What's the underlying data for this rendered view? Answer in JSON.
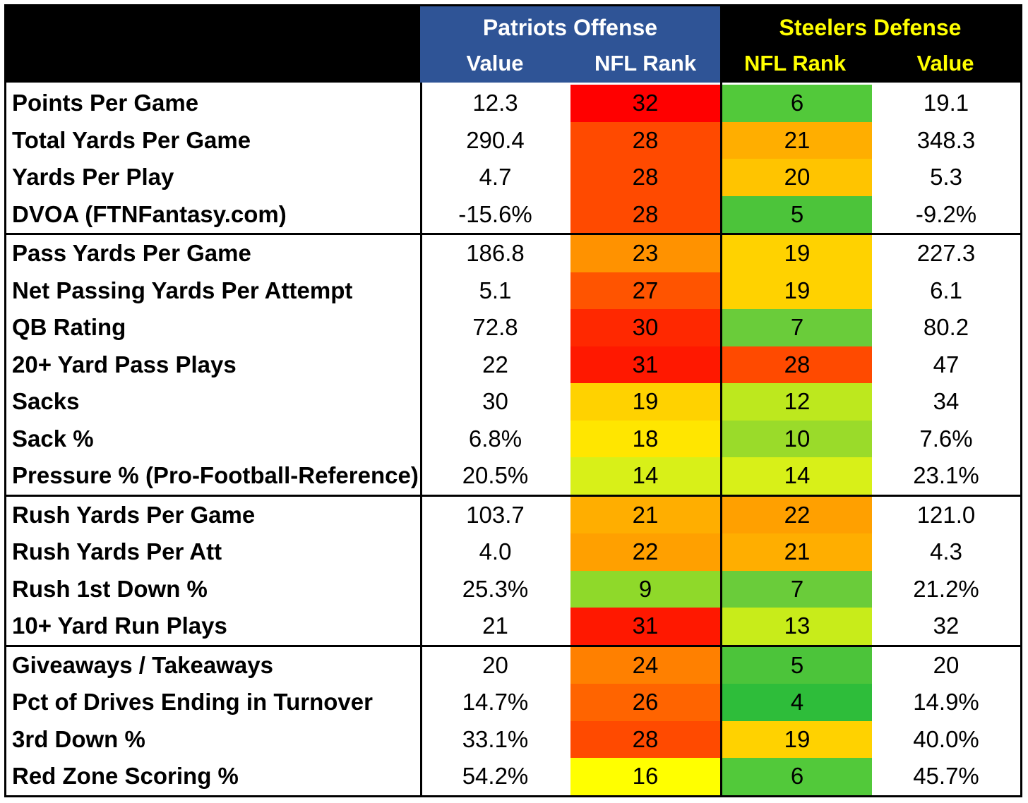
{
  "header": {
    "patriots": {
      "title": "Patriots Offense",
      "value_label": "Value",
      "rank_label": "NFL Rank",
      "color": "#2F5496"
    },
    "steelers": {
      "title": "Steelers Defense",
      "rank_label": "NFL Rank",
      "value_label": "Value",
      "color": "#000000",
      "text_color": "#FFFF00"
    }
  },
  "sections": [
    [
      {
        "label": "Points Per Game",
        "pat_value": "12.3",
        "pat_rank": "32",
        "stl_rank": "6",
        "stl_value": "19.1"
      },
      {
        "label": "Total Yards Per Game",
        "pat_value": "290.4",
        "pat_rank": "28",
        "stl_rank": "21",
        "stl_value": "348.3"
      },
      {
        "label": "Yards Per Play",
        "pat_value": "4.7",
        "pat_rank": "28",
        "stl_rank": "20",
        "stl_value": "5.3"
      },
      {
        "label": "DVOA (FTNFantasy.com)",
        "pat_value": "-15.6%",
        "pat_rank": "28",
        "stl_rank": "5",
        "stl_value": "-9.2%"
      }
    ],
    [
      {
        "label": "Pass Yards Per Game",
        "pat_value": "186.8",
        "pat_rank": "23",
        "stl_rank": "19",
        "stl_value": "227.3"
      },
      {
        "label": "Net Passing Yards Per Attempt",
        "pat_value": "5.1",
        "pat_rank": "27",
        "stl_rank": "19",
        "stl_value": "6.1"
      },
      {
        "label": "QB Rating",
        "pat_value": "72.8",
        "pat_rank": "30",
        "stl_rank": "7",
        "stl_value": "80.2"
      },
      {
        "label": "20+ Yard Pass Plays",
        "pat_value": "22",
        "pat_rank": "31",
        "stl_rank": "28",
        "stl_value": "47"
      },
      {
        "label": "Sacks",
        "pat_value": "30",
        "pat_rank": "19",
        "stl_rank": "12",
        "stl_value": "34"
      },
      {
        "label": "Sack %",
        "pat_value": "6.8%",
        "pat_rank": "18",
        "stl_rank": "10",
        "stl_value": "7.6%"
      },
      {
        "label": "Pressure % (Pro-Football-Reference)",
        "pat_value": "20.5%",
        "pat_rank": "14",
        "stl_rank": "14",
        "stl_value": "23.1%"
      }
    ],
    [
      {
        "label": "Rush Yards Per Game",
        "pat_value": "103.7",
        "pat_rank": "21",
        "stl_rank": "22",
        "stl_value": "121.0"
      },
      {
        "label": "Rush Yards Per Att",
        "pat_value": "4.0",
        "pat_rank": "22",
        "stl_rank": "21",
        "stl_value": "4.3"
      },
      {
        "label": "Rush 1st Down %",
        "pat_value": "25.3%",
        "pat_rank": "9",
        "stl_rank": "7",
        "stl_value": "21.2%"
      },
      {
        "label": "10+ Yard Run Plays",
        "pat_value": "21",
        "pat_rank": "31",
        "stl_rank": "13",
        "stl_value": "32"
      }
    ],
    [
      {
        "label": "Giveaways / Takeaways",
        "pat_value": "20",
        "pat_rank": "24",
        "stl_rank": "5",
        "stl_value": "20"
      },
      {
        "label": "Pct of Drives Ending in Turnover",
        "pat_value": "14.7%",
        "pat_rank": "26",
        "stl_rank": "4",
        "stl_value": "14.9%"
      },
      {
        "label": "3rd Down %",
        "pat_value": "33.1%",
        "pat_rank": "28",
        "stl_rank": "19",
        "stl_value": "40.0%"
      },
      {
        "label": "Red Zone Scoring %",
        "pat_value": "54.2%",
        "pat_rank": "16",
        "stl_rank": "6",
        "stl_value": "45.7%"
      }
    ]
  ],
  "rank_colors": {
    "4": "#2EBD3A",
    "5": "#4CC43A",
    "6": "#52C93A",
    "7": "#6ACC3A",
    "9": "#8FD92A",
    "10": "#9ADB2A",
    "12": "#BDE81E",
    "13": "#C8EC1A",
    "14": "#D8F018",
    "16": "#FFFF00",
    "18": "#FFE600",
    "19": "#FFD200",
    "20": "#FFC400",
    "21": "#FFAE00",
    "22": "#FFA000",
    "23": "#FF9200",
    "24": "#FF8000",
    "26": "#FF6400",
    "27": "#FF5400",
    "28": "#FF4A00",
    "30": "#FF2800",
    "31": "#FF1800",
    "32": "#FF0000"
  }
}
